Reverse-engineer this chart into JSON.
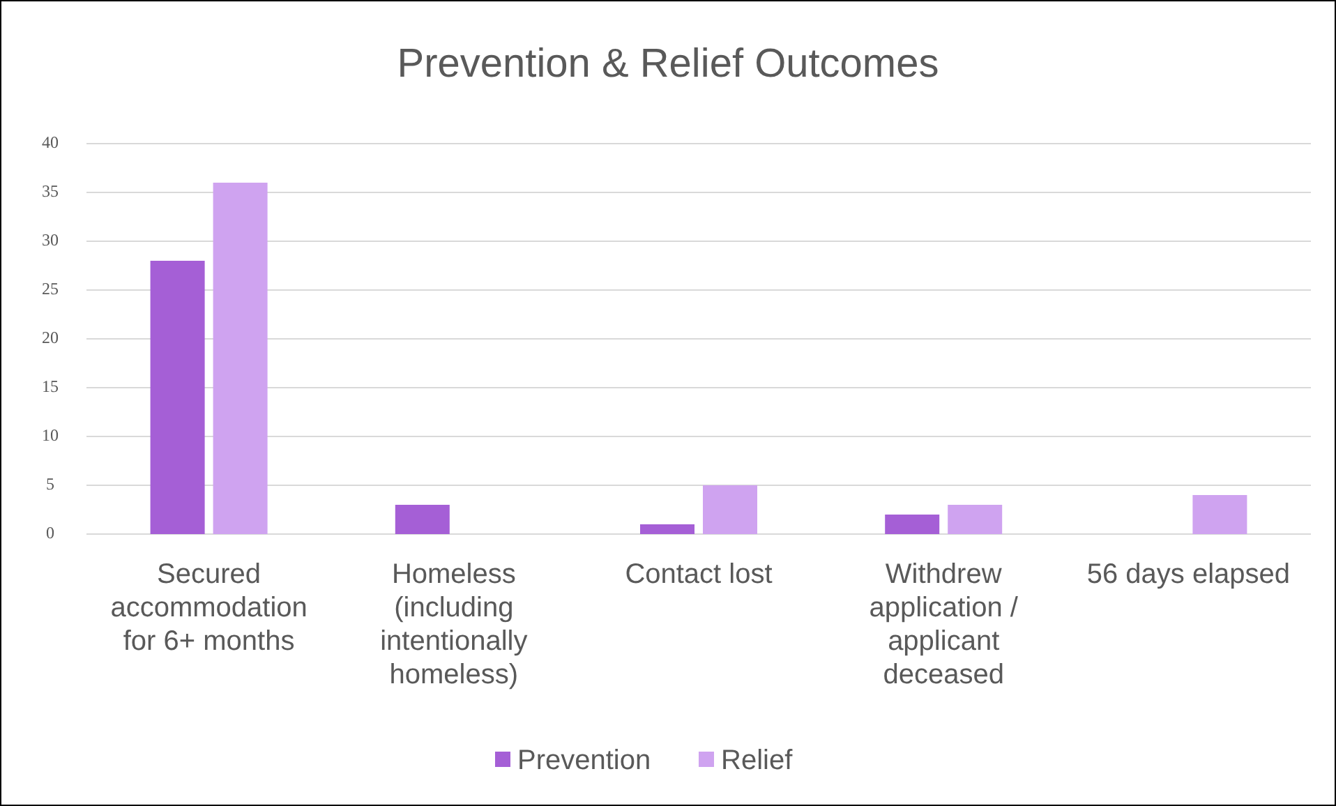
{
  "chart_data": {
    "type": "bar",
    "title": "Prevention & Relief Outcomes",
    "categories": [
      "Secured accommodation for 6+ months",
      "Homeless (including intentionally homeless)",
      "Contact lost",
      "Withdrew application / applicant deceased",
      "56 days elapsed"
    ],
    "series": [
      {
        "name": "Prevention",
        "color": "#a55fd6",
        "values": [
          28,
          3,
          1,
          2,
          0
        ]
      },
      {
        "name": "Relief",
        "color": "#cfa3f0",
        "values": [
          36,
          0,
          5,
          3,
          4
        ]
      }
    ],
    "ylim": [
      0,
      40
    ],
    "yticks": [
      0,
      5,
      10,
      15,
      20,
      25,
      30,
      35,
      40
    ],
    "grid": "y",
    "legend": "bottom"
  }
}
